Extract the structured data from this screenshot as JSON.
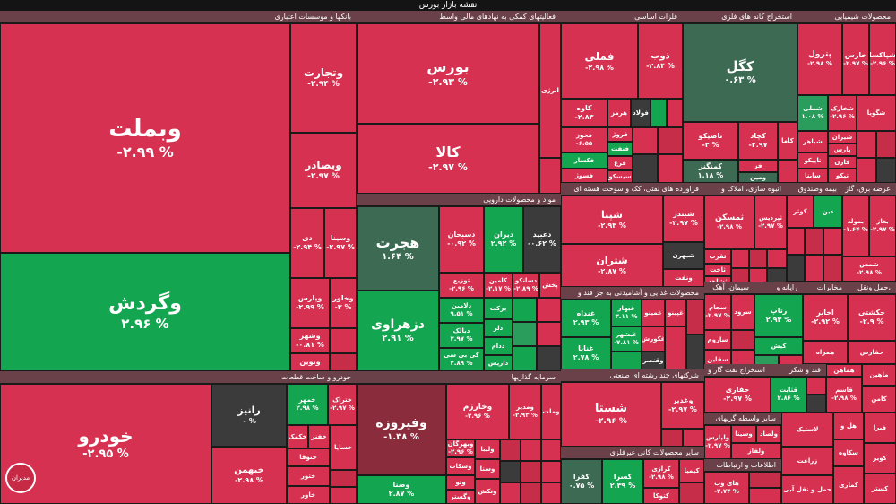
{
  "title": "نقشه بازار بورس",
  "sectors": {
    "banks": "بانکها و موسسات اعتباری",
    "finance": "فعالیتهای کمکی به نهادهای مالی واسط",
    "basic_metals": "فلزات اساسی",
    "mining": "استخراج کانه های فلزی",
    "chemicals": "محصولات شیمیایی",
    "pharma": "مواد و محصولات دارویی",
    "petroleum": "فراورده های نفتی، کک و سوخت هسته ای",
    "real_estate": "انبوه سازی، املاک و",
    "insurance": "بیمه وصندوق",
    "utilities": "عرضه برق، گاز",
    "food": "محصولات غذایی و آشامیدنی به جز قند و",
    "cement": "سیمان، آهک",
    "computer": "رایانه و",
    "tiles": "مخابرات",
    "transport": "حمل ونقل،",
    "auto": "خودرو و ساخت قطعات",
    "investment": "سرمایه گذاریها",
    "multi": "شرکتهای چند رشته ای صنعتی",
    "oil_ext": "استخراج نفت گاز و",
    "sugar": "قند و شکر",
    "minerals": "سایر محصولات کانی غیرفلزی",
    "other_brokers": "سایر واسطه گریهای",
    "it": "اطلاعات و ارتباطات"
  },
  "tiles": {
    "vabemellat": {
      "name": "وبملت",
      "pct": "-۲.۹۹ %"
    },
    "vegardesh": {
      "name": "وگردش",
      "pct": "۲.۹۶ %"
    },
    "vatejarat": {
      "name": "وتجارت",
      "pct": "-۲.۹۴ %"
    },
    "vabsader": {
      "name": "وبصادر",
      "pct": "-۲.۹۷ %"
    },
    "di": {
      "name": "دی",
      "pct": "-۲.۹۴ %"
    },
    "vesina": {
      "name": "وسینا",
      "pct": "-۲.۹۷ %"
    },
    "vepars": {
      "name": "وپارس",
      "pct": "-۲.۹۹ %"
    },
    "vakhavar": {
      "name": "وخاور",
      "pct": "-۳ %"
    },
    "vashahr": {
      "name": "وشهر",
      "pct": "-۰.۸۱ %"
    },
    "vanovin": {
      "name": "ونوین",
      "pct": ""
    },
    "bours": {
      "name": "بورس",
      "pct": "-۲.۹۳ %"
    },
    "kala": {
      "name": "کالا",
      "pct": "-۲.۹۷ %"
    },
    "enerzhi": {
      "name": "انرژی",
      "pct": ""
    },
    "fameli": {
      "name": "فملی",
      "pct": "-۲.۹۸ %"
    },
    "zob": {
      "name": "ذوب",
      "pct": "-۲.۸۴ %"
    },
    "kaveh": {
      "name": "کاوه",
      "pct": "-۲.۸۳"
    },
    "hormoz": {
      "name": "هرمز",
      "pct": ""
    },
    "foolad": {
      "name": "فولاد",
      "pct": ""
    },
    "khoms": {
      "name": "فخوز",
      "pct": "-۶.۵۵"
    },
    "forooz": {
      "name": "فروژ",
      "pct": ""
    },
    "fanfat": {
      "name": "فنفت",
      "pct": ""
    },
    "faksar": {
      "name": "فکسار",
      "pct": ""
    },
    "farg": {
      "name": "فرع",
      "pct": ""
    },
    "fasoor": {
      "name": "فسوژ",
      "pct": ""
    },
    "sisko": {
      "name": "سیسکو",
      "pct": ""
    },
    "kegol": {
      "name": "کگل",
      "pct": "۰.۶۳ %"
    },
    "tasisko": {
      "name": "تاصیکو",
      "pct": "-۳ %"
    },
    "kecheder": {
      "name": "کچاد",
      "pct": "-۲.۹۷"
    },
    "kama": {
      "name": "کاما",
      "pct": ""
    },
    "kemangan": {
      "name": "کمنگنز",
      "pct": "۱.۱۸ %"
    },
    "faz": {
      "name": "فز",
      "pct": ""
    },
    "ramin": {
      "name": "ومین",
      "pct": ""
    },
    "petrol": {
      "name": "پترول",
      "pct": "-۲.۹۸ %"
    },
    "kharas": {
      "name": "خارس",
      "pct": "-۲.۹۷ %"
    },
    "shapaksa": {
      "name": "شپاکسا",
      "pct": "-۲.۹۶ %"
    },
    "shekhark": {
      "name": "شخارک",
      "pct": "-۲.۹۶ %"
    },
    "shagol": {
      "name": "شگویا",
      "pct": ""
    },
    "shomal": {
      "name": "شملی",
      "pct": "۱.۰۸ %"
    },
    "shiran": {
      "name": "شیران",
      "pct": ""
    },
    "shabandar": {
      "name": "شباهر",
      "pct": ""
    },
    "pars": {
      "name": "پارس",
      "pct": ""
    },
    "tapiko": {
      "name": "تاپیکو",
      "pct": ""
    },
    "sabana": {
      "name": "ساینا",
      "pct": ""
    },
    "faran": {
      "name": "فارن",
      "pct": ""
    },
    "tepco": {
      "name": "تپکو",
      "pct": ""
    },
    "hejrat": {
      "name": "هجرت",
      "pct": "۱.۶۴ %"
    },
    "dasobhan": {
      "name": "دسبحان",
      "pct": "-۰.۹۲ %"
    },
    "dirann": {
      "name": "دیران",
      "pct": "۲.۹۲ %"
    },
    "dabid": {
      "name": "دعبید",
      "pct": "-۰.۶۲ %"
    },
    "dezahravi": {
      "name": "دزهراوی",
      "pct": "۲.۹۱ %"
    },
    "tozi": {
      "name": "توزیع",
      "pct": "-۲.۹۶ %"
    },
    "kemasin": {
      "name": "کامین",
      "pct": "-۲.۱۷ %"
    },
    "dasaveko": {
      "name": "دسانکو",
      "pct": "-۲.۸۹ %"
    },
    "pakhsh": {
      "name": "پخش",
      "pct": ""
    },
    "dalamin": {
      "name": "دلامین",
      "pct": "۹.۵۱ %"
    },
    "barkat": {
      "name": "برکت",
      "pct": ""
    },
    "dabalk": {
      "name": "دبالک",
      "pct": "۲.۹۷ %"
    },
    "dalor": {
      "name": "دلر",
      "pct": ""
    },
    "kibi": {
      "name": "کی بی سی",
      "pct": "۲.۸۹ %"
    },
    "dadar": {
      "name": "ددام",
      "pct": ""
    },
    "darpis": {
      "name": "دارپس",
      "pct": ""
    },
    "shepna": {
      "name": "شپنا",
      "pct": "-۲.۹۳ %"
    },
    "shebandar": {
      "name": "شبندر",
      "pct": "-۲.۹۷ %"
    },
    "sheteran": {
      "name": "شتران",
      "pct": "-۲.۸۷ %"
    },
    "shebahr": {
      "name": "شبهرن",
      "pct": ""
    },
    "vanaft": {
      "name": "ونفت",
      "pct": ""
    },
    "tamaskan": {
      "name": "ثمسکن",
      "pct": "-۲.۹۸ %"
    },
    "nirdibi": {
      "name": "ثپردیس",
      "pct": "-۲.۹۷ %"
    },
    "tajmas": {
      "name": "تقرب",
      "pct": ""
    },
    "tabas": {
      "name": "ثاخت",
      "pct": ""
    },
    "tsahand": {
      "name": "ثشاهد",
      "pct": ""
    },
    "kowsar": {
      "name": "کوثر",
      "pct": ""
    },
    "dinn": {
      "name": "دین",
      "pct": ""
    },
    "bemoled": {
      "name": "بمولد",
      "pct": "-۱.۶۴ %"
    },
    "baghaz": {
      "name": "بغاز",
      "pct": "-۲.۹۷ %"
    },
    "shams": {
      "name": "شمس",
      "pct": "-۲.۹۸ %"
    },
    "ghanada": {
      "name": "غنداه",
      "pct": "۲.۹۳ %"
    },
    "ghebehar": {
      "name": "غبهار",
      "pct": "۳.۱۱ %"
    },
    "ghenesh": {
      "name": "غبشهر",
      "pct": "-۷.۸۱ %"
    },
    "ghamino": {
      "name": "غمینو",
      "pct": ""
    },
    "ghenabat": {
      "name": "غنابا",
      "pct": "۲.۷۸ %"
    },
    "ghepino": {
      "name": "غپینو",
      "pct": ""
    },
    "ghekorosh": {
      "name": "غکورش",
      "pct": ""
    },
    "ghaparsa": {
      "name": "وقنصر",
      "pct": ""
    },
    "sanavar": {
      "name": "سجام",
      "pct": "-۲.۹۷ %"
    },
    "sefars": {
      "name": "سرود",
      "pct": ""
    },
    "sekhazar": {
      "name": "ساروم",
      "pct": ""
    },
    "sabahar": {
      "name": "سقاین",
      "pct": ""
    },
    "rakik": {
      "name": "رتاپ",
      "pct": "۲.۹۳ %"
    },
    "kish": {
      "name": "کیش",
      "pct": ""
    },
    "akhabar": {
      "name": "اخابر",
      "pct": "-۲.۹۲ %"
    },
    "hamrah": {
      "name": "همراه",
      "pct": ""
    },
    "hakeshti": {
      "name": "حکشتی",
      "pct": "-۲.۹ %"
    },
    "hefars": {
      "name": "حفارس",
      "pct": ""
    },
    "khodro": {
      "name": "خودرو",
      "pct": "-۲.۹۵ %"
    },
    "raniz": {
      "name": "رانیز",
      "pct": "۰ %"
    },
    "khebahman": {
      "name": "خبهمن",
      "pct": "-۲.۹۸ %"
    },
    "khemehr": {
      "name": "خمهر",
      "pct": "۲.۹۸ %"
    },
    "khetrak": {
      "name": "ختراک",
      "pct": "-۲.۹۷ %"
    },
    "khakam": {
      "name": "خکمک",
      "pct": ""
    },
    "khosepa": {
      "name": "خساپا",
      "pct": ""
    },
    "khenazam": {
      "name": "ختوقا",
      "pct": ""
    },
    "khezar": {
      "name": "خفنر",
      "pct": ""
    },
    "khamoto": {
      "name": "خاور",
      "pct": ""
    },
    "khkap": {
      "name": "ختور",
      "pct": ""
    },
    "vefiroozeh": {
      "name": "وفیروزه",
      "pct": "-۱.۳۸ %"
    },
    "vekharazm": {
      "name": "وخارزم",
      "pct": "-۲.۹۶ %"
    },
    "vemadir": {
      "name": "ومدیر",
      "pct": "-۲.۹۳ %"
    },
    "mehregan": {
      "name": "وبهرگان",
      "pct": "-۲.۹۶ %"
    },
    "vesakhat": {
      "name": "وسکاب",
      "pct": ""
    },
    "valibia": {
      "name": "ولیبا",
      "pct": ""
    },
    "vesat": {
      "name": "وستا",
      "pct": ""
    },
    "vesapa": {
      "name": "وصنا",
      "pct": "۲.۸۷ %"
    },
    "vetoo": {
      "name": "وتو",
      "pct": ""
    },
    "vakashet": {
      "name": "ونکش",
      "pct": ""
    },
    "vegostar": {
      "name": "وگستر",
      "pct": ""
    },
    "vepeisa": {
      "name": "وملت",
      "pct": ""
    },
    "shasta": {
      "name": "شستا",
      "pct": "-۲.۹۶ %"
    },
    "vaghadir": {
      "name": "وغدیر",
      "pct": "-۲.۹۷ %"
    },
    "haffari": {
      "name": "حفاری",
      "pct": "-۲.۹۷ %"
    },
    "ghesabet": {
      "name": "قثابت",
      "pct": "۲.۸۶ %"
    },
    "ghasam": {
      "name": "قاسم",
      "pct": "-۲.۹۸ %"
    },
    "hamehr": {
      "name": "هماهن",
      "pct": ""
    },
    "mahin": {
      "name": "ماهین",
      "pct": ""
    },
    "kamen": {
      "name": "کامن",
      "pct": ""
    },
    "kafra": {
      "name": "کفرا",
      "pct": "۰.۷۵ %"
    },
    "kesera": {
      "name": "کسرا",
      "pct": "۲.۳۹ %"
    },
    "kerazi": {
      "name": "کرازی",
      "pct": "-۲.۹۸ %"
    },
    "ketoosi": {
      "name": "کتوکا",
      "pct": ""
    },
    "kibaser": {
      "name": "کیمیا",
      "pct": ""
    },
    "vakharat": {
      "name": "ولصاد",
      "pct": ""
    },
    "valpars": {
      "name": "ولپارس",
      "pct": "-۲.۹۷ %"
    },
    "vesina2": {
      "name": "وسینا",
      "pct": ""
    },
    "valfaz": {
      "name": "ولفاز",
      "pct": ""
    },
    "lasik": {
      "name": "لاستیک",
      "pct": ""
    },
    "hilavadid": {
      "name": "هل و",
      "pct": ""
    },
    "sekhetk": {
      "name": "سکاوه",
      "pct": ""
    },
    "zeraat": {
      "name": "زراعت",
      "pct": ""
    },
    "haml": {
      "name": "حمل و نقل آبی",
      "pct": ""
    },
    "hafez": {
      "name": "های وب",
      "pct": "-۲.۷۴ %"
    },
    "kamari": {
      "name": "کماری",
      "pct": ""
    },
    "kevire": {
      "name": "کویر",
      "pct": ""
    },
    "fezam": {
      "name": "فیرا",
      "pct": ""
    },
    "kasteri": {
      "name": "کستر",
      "pct": ""
    }
  },
  "colors": {
    "down": "#d63150",
    "up": "#14a550",
    "neutral": "#3b3b3b"
  },
  "logo": "مدیران"
}
